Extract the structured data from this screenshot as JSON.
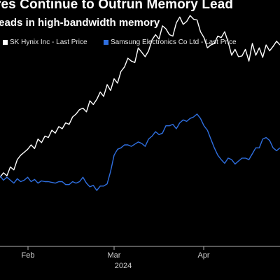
{
  "header": {
    "title": "res Continue to Outrun Memory Lead",
    "subtitle": "leads in high-bandwidth memory"
  },
  "legend": [
    {
      "label": "SK Hynix Inc - Last Price",
      "color": "#ffffff"
    },
    {
      "label": "Samsung Electronics Co Ltd - Last Price",
      "color": "#2f6fe0"
    }
  ],
  "chart_data": {
    "type": "line",
    "x_ticks": [
      "Feb",
      "Mar",
      "Apr"
    ],
    "x_year": "2024",
    "grid": false,
    "series": [
      {
        "name": "SK Hynix Inc - Last Price",
        "color": "#ffffff",
        "values": [
          56,
          62,
          58,
          70,
          66,
          80,
          86,
          90,
          94,
          100,
          95,
          108,
          103,
          112,
          110,
          120,
          116,
          125,
          122,
          130,
          128,
          138,
          142,
          148,
          150,
          145,
          160,
          155,
          162,
          172,
          166,
          182,
          174,
          190,
          184,
          200,
          206,
          218,
          214,
          212,
          232,
          226,
          220,
          228,
          243,
          250,
          244,
          262,
          258,
          250,
          248,
          266,
          274,
          264,
          268,
          276,
          271,
          270,
          254,
          246,
          232,
          236,
          238,
          248,
          246,
          254,
          240,
          222,
          230,
          220,
          221,
          230,
          214,
          238,
          222,
          232,
          219,
          236,
          228,
          234,
          241,
          236
        ]
      },
      {
        "name": "Samsung Electronics Co Ltd - Last Price",
        "color": "#2f6fe0",
        "values": [
          58,
          52,
          56,
          52,
          48,
          54,
          50,
          52,
          56,
          50,
          53,
          48,
          51,
          50,
          50,
          49,
          48,
          50,
          50,
          46,
          46,
          50,
          48,
          50,
          56,
          48,
          43,
          45,
          38,
          44,
          44,
          47,
          64,
          86,
          94,
          96,
          100,
          100,
          98,
          101,
          104,
          102,
          98,
          108,
          112,
          118,
          114,
          116,
          126,
          126,
          128,
          122,
          130,
          134,
          132,
          136,
          138,
          142,
          136,
          126,
          120,
          108,
          96,
          86,
          80,
          75,
          82,
          80,
          74,
          78,
          82,
          82,
          80,
          88,
          96,
          96,
          108,
          110,
          106,
          96,
          92,
          96
        ]
      }
    ]
  }
}
